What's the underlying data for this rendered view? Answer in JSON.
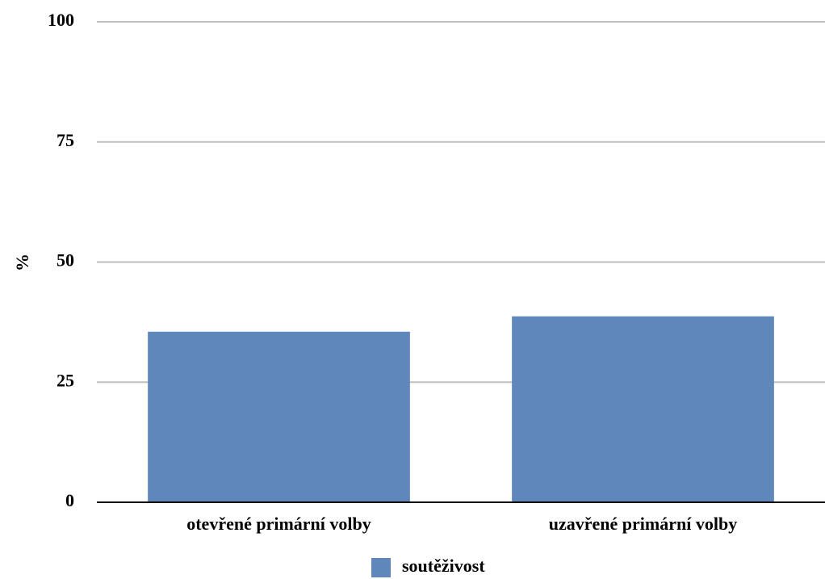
{
  "chart_data": {
    "type": "bar",
    "categories": [
      "otevřené primární volby",
      "uzavřené primární volby"
    ],
    "series": [
      {
        "name": "soutěživost",
        "values": [
          35.5,
          38.7
        ],
        "color": "#5f87ba"
      }
    ],
    "xlabel": "",
    "ylabel": "%",
    "ylim": [
      0,
      100
    ],
    "yticks": [
      0,
      25,
      50,
      75,
      100
    ],
    "grid": true,
    "legend": "bottom"
  }
}
